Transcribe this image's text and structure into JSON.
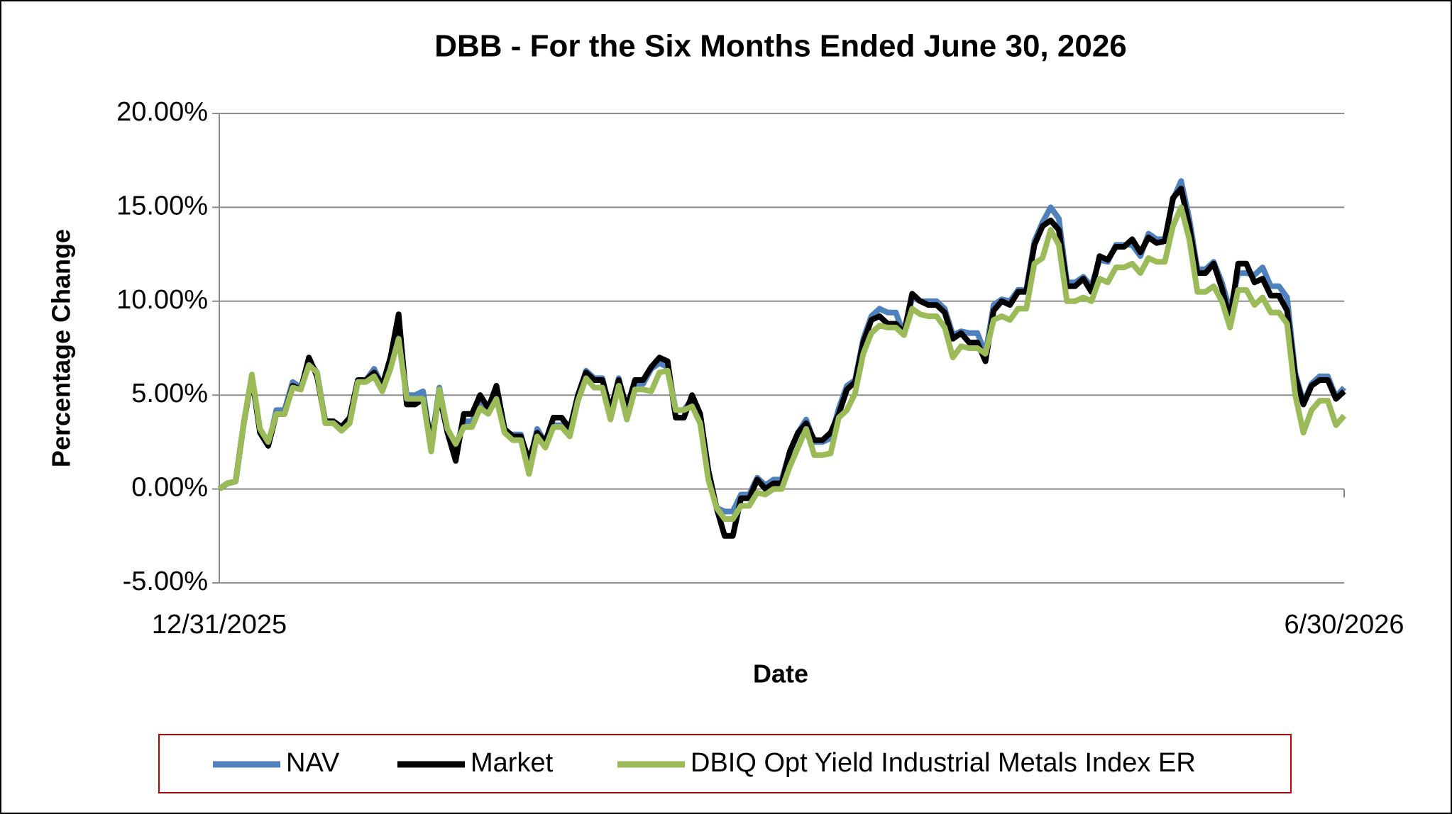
{
  "chart_data": {
    "type": "line",
    "title": "DBB - For the Six Months Ended June 30, 2026",
    "x_label": "Date",
    "y_label": "Percentage Change",
    "categories": [
      "12/31/2025",
      null,
      null,
      null,
      null,
      null,
      null,
      null,
      null,
      null,
      null,
      null,
      null,
      null,
      null,
      null,
      null,
      null,
      null,
      null,
      null,
      null,
      null,
      null,
      null,
      null,
      null,
      null,
      null,
      null,
      null,
      null,
      null,
      null,
      null,
      null,
      null,
      null,
      null,
      null,
      null,
      null,
      null,
      null,
      null,
      null,
      null,
      null,
      null,
      null,
      null,
      null,
      null,
      null,
      null,
      null,
      null,
      null,
      null,
      null,
      null,
      null,
      null,
      null,
      null,
      null,
      null,
      null,
      null,
      null,
      null,
      null,
      null,
      null,
      null,
      null,
      null,
      null,
      null,
      null,
      null,
      null,
      null,
      null,
      null,
      null,
      null,
      null,
      null,
      null,
      null,
      null,
      null,
      null,
      null,
      null,
      null,
      null,
      null,
      null,
      null,
      null,
      null,
      null,
      null,
      null,
      null,
      null,
      null,
      null,
      null,
      null,
      null,
      null,
      null,
      null,
      null,
      null,
      null,
      null,
      null,
      null,
      null,
      null,
      null,
      null,
      null,
      null,
      null,
      null,
      null,
      null,
      null,
      null,
      null,
      null,
      null,
      null,
      "6/30/2026"
    ],
    "series": [
      {
        "name": "NAV",
        "color": "#4f81bd",
        "values": [
          0,
          0.3,
          0.4,
          3.5,
          6,
          3,
          2.3,
          4.2,
          4.2,
          5.7,
          5.4,
          6.8,
          6.2,
          3.6,
          3.6,
          3.3,
          3.8,
          5.8,
          5.8,
          6.4,
          5.5,
          6.6,
          8,
          5,
          5,
          5.2,
          2.3,
          5.4,
          3,
          2.2,
          3.6,
          3.6,
          4.7,
          4.3,
          5,
          3,
          2.9,
          2.9,
          1.3,
          3.2,
          2.5,
          3.4,
          3.4,
          3,
          5,
          6.3,
          5.9,
          5.9,
          4.1,
          5.9,
          4.2,
          5.6,
          5.6,
          6.4,
          6.7,
          6.5,
          4.2,
          4.2,
          4.8,
          4,
          1,
          -1,
          -1.2,
          -1.2,
          -0.3,
          -0.3,
          0.6,
          0.2,
          0.5,
          0.5,
          2,
          3,
          3.7,
          2.5,
          2.5,
          2.7,
          4.3,
          5.5,
          5.8,
          8,
          9.2,
          9.6,
          9.4,
          9.4,
          8.2,
          10.2,
          10,
          10,
          10,
          9.6,
          8.2,
          8.4,
          8.3,
          8.3,
          7.2,
          9.8,
          10.1,
          10,
          10.6,
          10.6,
          13.2,
          14.2,
          15,
          14.4,
          11,
          11,
          11.3,
          10.8,
          12.2,
          12.1,
          13,
          13,
          13,
          12.4,
          13.6,
          13.3,
          13.3,
          15.4,
          16.4,
          14.4,
          11.7,
          11.7,
          12.1,
          11,
          9.5,
          11.5,
          11.5,
          11.4,
          11.8,
          10.8,
          10.8,
          10.2,
          6.2,
          4.6,
          5.6,
          6,
          6,
          4.9,
          5.4
        ]
      },
      {
        "name": "Market",
        "color": "#000000",
        "values": [
          0,
          0.3,
          0.4,
          3.5,
          6,
          3,
          2.3,
          4,
          4,
          5.5,
          5.3,
          7,
          6,
          3.6,
          3.6,
          3.3,
          3.8,
          5.8,
          5.8,
          6.2,
          5.5,
          7,
          9.3,
          4.5,
          4.5,
          4.8,
          2.5,
          5,
          3,
          1.5,
          4,
          4,
          5,
          4.3,
          5.5,
          3.2,
          2.8,
          2.8,
          1.5,
          3,
          2.5,
          3.8,
          3.8,
          3.2,
          5,
          6.2,
          5.8,
          5.8,
          4.2,
          5.8,
          4.3,
          5.8,
          5.8,
          6.5,
          7,
          6.8,
          3.8,
          3.8,
          5,
          4,
          1,
          -1,
          -2.5,
          -2.5,
          -0.5,
          -0.5,
          0.5,
          0,
          0.3,
          0.3,
          2,
          3,
          3.5,
          2.6,
          2.6,
          3,
          4,
          5.3,
          5.7,
          7.8,
          9,
          9.2,
          8.8,
          8.8,
          8.3,
          10.4,
          10,
          9.8,
          9.8,
          9.4,
          8,
          8.3,
          7.8,
          7.8,
          6.8,
          9.5,
          10,
          9.8,
          10.5,
          10.5,
          13,
          14,
          14.3,
          13.8,
          10.8,
          10.8,
          11.2,
          10.5,
          12.4,
          12.2,
          12.9,
          12.9,
          13.3,
          12.6,
          13.4,
          13.1,
          13.2,
          15.5,
          16,
          14,
          11.5,
          11.5,
          12,
          10.7,
          9,
          12,
          12,
          11,
          11.2,
          10.3,
          10.3,
          9.5,
          6,
          4.5,
          5.5,
          5.8,
          5.8,
          4.8,
          5.2
        ]
      },
      {
        "name": "DBIQ Opt Yield Industrial Metals Index ER",
        "color": "#9bbb59",
        "values": [
          0,
          0.3,
          0.4,
          3.5,
          6.1,
          3.2,
          2.5,
          4,
          4,
          5.4,
          5.3,
          6.6,
          6.2,
          3.5,
          3.5,
          3.1,
          3.5,
          5.7,
          5.7,
          6,
          5.2,
          6.4,
          8,
          4.8,
          4.8,
          4.8,
          2,
          5.3,
          3.2,
          2.4,
          3.3,
          3.3,
          4.3,
          4,
          4.8,
          3,
          2.6,
          2.6,
          0.8,
          2.8,
          2.2,
          3.3,
          3.3,
          2.8,
          4.7,
          5.9,
          5.4,
          5.4,
          3.7,
          5.5,
          3.7,
          5.3,
          5.3,
          5.2,
          6.2,
          6.3,
          4.2,
          4.2,
          4.4,
          3.5,
          0.5,
          -1,
          -1.6,
          -1.6,
          -0.9,
          -0.9,
          -0.2,
          -0.3,
          0,
          0,
          1.2,
          2.2,
          3.2,
          1.8,
          1.8,
          1.9,
          3.8,
          4.2,
          5.1,
          7.2,
          8.3,
          8.7,
          8.6,
          8.6,
          8.2,
          9.6,
          9.3,
          9.2,
          9.2,
          8.6,
          7,
          7.6,
          7.5,
          7.5,
          7.2,
          9,
          9.2,
          9,
          9.6,
          9.6,
          12,
          12.3,
          13.8,
          13,
          10,
          10,
          10.2,
          10,
          11.2,
          11,
          11.8,
          11.8,
          12,
          11.5,
          12.3,
          12.1,
          12.1,
          14,
          15,
          13.3,
          10.5,
          10.5,
          10.8,
          10,
          8.6,
          10.6,
          10.6,
          9.8,
          10.2,
          9.4,
          9.4,
          8.8,
          5,
          3,
          4.2,
          4.7,
          4.7,
          3.4,
          3.9
        ]
      }
    ],
    "ylim": [
      -5,
      20
    ],
    "yticks": [
      {
        "value": -5,
        "label": "-5.00%"
      },
      {
        "value": 0,
        "label": "0.00%"
      },
      {
        "value": 5,
        "label": "5.00%"
      },
      {
        "value": 10,
        "label": "10.00%"
      },
      {
        "value": 15,
        "label": "15.00%"
      },
      {
        "value": 20,
        "label": "20.00%"
      }
    ],
    "grid": true,
    "legend": "bottom"
  }
}
